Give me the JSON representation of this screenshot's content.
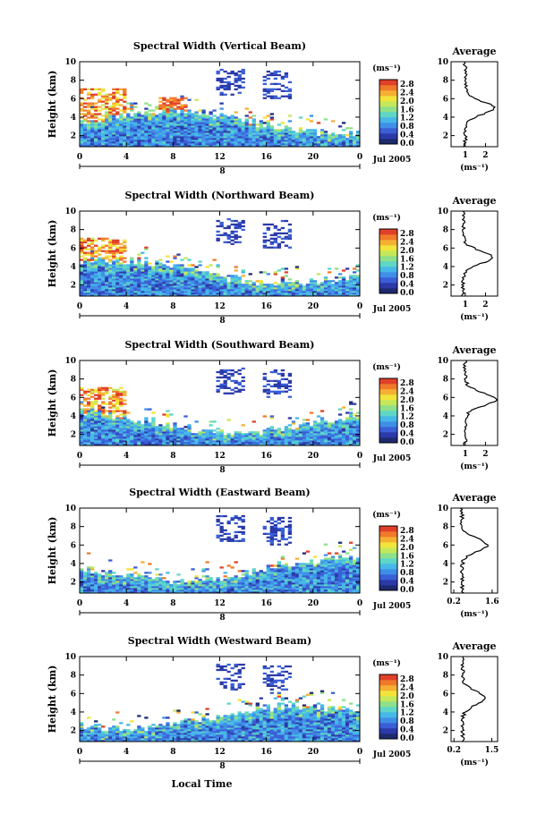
{
  "figure": {
    "xlabel": "Local Time",
    "date_label": "Jul 2005",
    "day_label": "8",
    "ylabel": "Height (km)",
    "colorbar_unit": "(ms⁻¹)",
    "avg_title": "Average",
    "avg_xlabel": "(ms⁻¹)"
  },
  "colorbar": {
    "ticks": [
      "0.0",
      "0.4",
      "0.8",
      "1.2",
      "1.6",
      "2.0",
      "2.4",
      "2.8"
    ],
    "colors": [
      "#1e2a6e",
      "#2b3aa8",
      "#3a5fd6",
      "#3f8fe8",
      "#46b8e8",
      "#5fd6c6",
      "#8ee08a",
      "#c4e85a",
      "#f2e43a",
      "#f5b032",
      "#f07a2a",
      "#e0402a"
    ]
  },
  "chart_data": [
    {
      "type": "heatmap",
      "title": "Spectral Width (Vertical Beam)",
      "x_ticks": [
        "0",
        "4",
        "8",
        "12",
        "16",
        "20",
        "0"
      ],
      "y_ticks": [
        "2",
        "4",
        "6",
        "8",
        "10"
      ],
      "xlim": [
        0,
        24
      ],
      "ylim": [
        0.8,
        10
      ],
      "average": {
        "x_ticks": [
          "1",
          "2"
        ],
        "xlim": [
          0.3,
          2.6
        ],
        "peak_height": 5.0,
        "peak_value": 2.4,
        "base_value": 1.0
      }
    },
    {
      "type": "heatmap",
      "title": "Spectral Width (Northward Beam)",
      "x_ticks": [
        "0",
        "4",
        "8",
        "12",
        "16",
        "20",
        "0"
      ],
      "y_ticks": [
        "2",
        "4",
        "6",
        "8",
        "10"
      ],
      "xlim": [
        0,
        24
      ],
      "ylim": [
        0.8,
        10
      ],
      "average": {
        "x_ticks": [
          "1",
          "2"
        ],
        "xlim": [
          0.3,
          2.6
        ],
        "peak_height": 5.0,
        "peak_value": 2.3,
        "base_value": 0.9
      }
    },
    {
      "type": "heatmap",
      "title": "Spectral Width (Southward Beam)",
      "x_ticks": [
        "0",
        "4",
        "8",
        "12",
        "16",
        "20",
        "0"
      ],
      "y_ticks": [
        "2",
        "4",
        "6",
        "8",
        "10"
      ],
      "xlim": [
        0,
        24
      ],
      "ylim": [
        0.8,
        10
      ],
      "average": {
        "x_ticks": [
          "1",
          "2"
        ],
        "xlim": [
          0.3,
          2.6
        ],
        "peak_height": 5.8,
        "peak_value": 2.5,
        "base_value": 1.0
      }
    },
    {
      "type": "heatmap",
      "title": "Spectral Width (Eastward Beam)",
      "x_ticks": [
        "0",
        "4",
        "8",
        "12",
        "16",
        "20",
        "0"
      ],
      "y_ticks": [
        "2",
        "4",
        "6",
        "8",
        "10"
      ],
      "xlim": [
        0,
        24
      ],
      "ylim": [
        0.8,
        10
      ],
      "average": {
        "x_ticks": [
          "0.2",
          "1.6"
        ],
        "xlim": [
          0.1,
          1.8
        ],
        "peak_height": 6.0,
        "peak_value": 1.4,
        "base_value": 0.5
      }
    },
    {
      "type": "heatmap",
      "title": "Spectral Width (Westward Beam)",
      "x_ticks": [
        "0",
        "4",
        "8",
        "12",
        "16",
        "20",
        "0"
      ],
      "y_ticks": [
        "2",
        "4",
        "6",
        "8",
        "10"
      ],
      "xlim": [
        0,
        24
      ],
      "ylim": [
        0.8,
        10
      ],
      "average": {
        "x_ticks": [
          "0.2",
          "1.5"
        ],
        "xlim": [
          0.1,
          1.7
        ],
        "peak_height": 5.5,
        "peak_value": 1.3,
        "base_value": 0.5
      }
    }
  ]
}
